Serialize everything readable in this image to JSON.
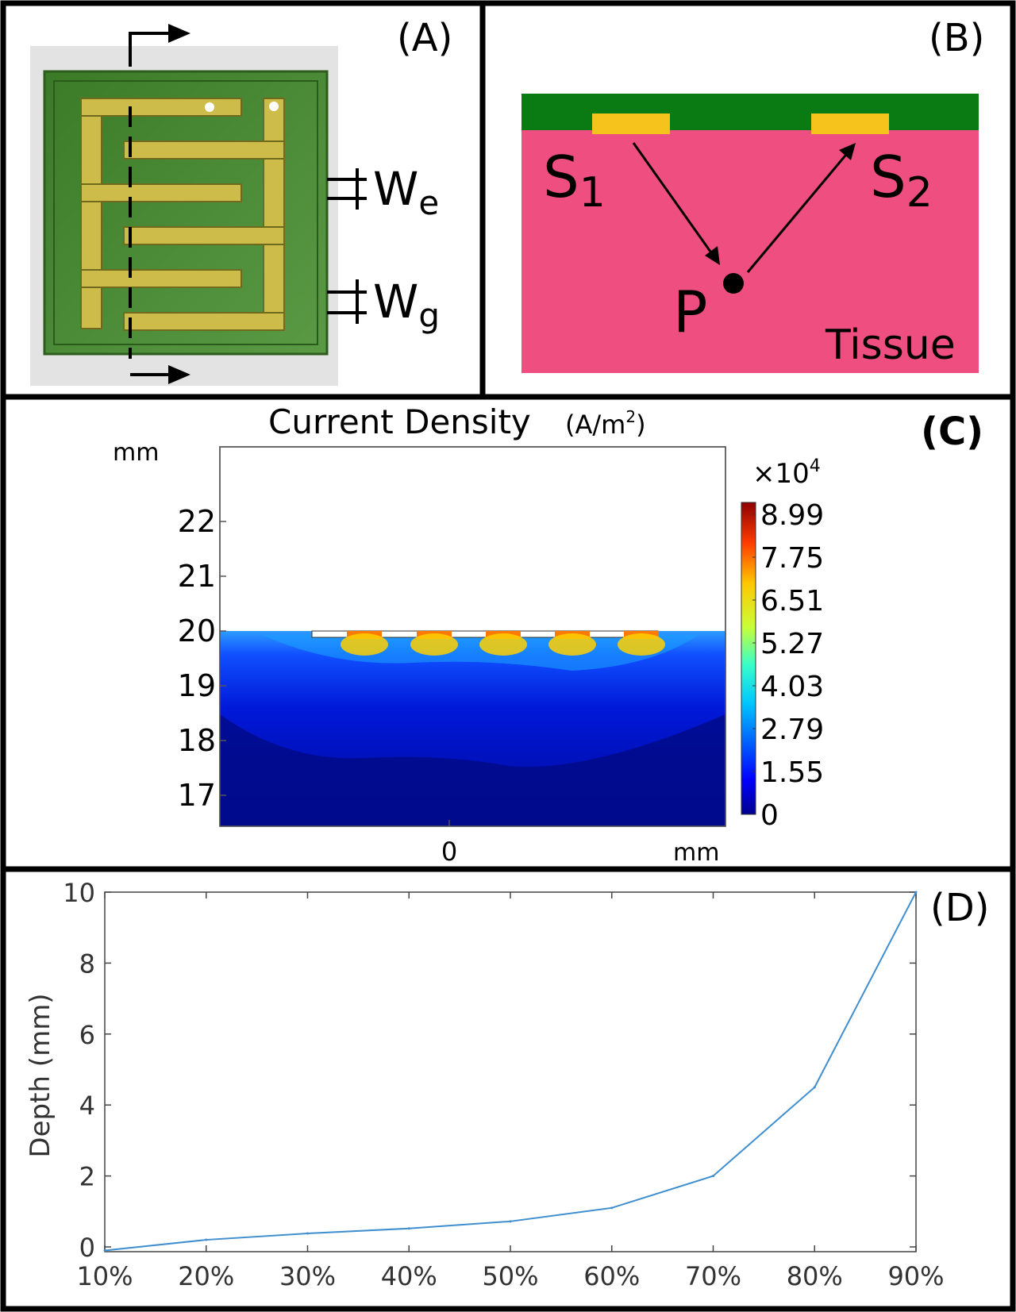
{
  "panels": {
    "a": {
      "label": "(A)",
      "we_label": "W",
      "we_sub": "e",
      "wg_label": "W",
      "wg_sub": "g"
    },
    "b": {
      "label": "(B)",
      "s1": "S",
      "s1_sub": "1",
      "s2": "S",
      "s2_sub": "2",
      "p": "P",
      "tissue": "Tissue"
    },
    "c": {
      "label": "(C)",
      "title": "Current Density",
      "units": "(A/m",
      "units_sup": "2",
      "units_close": ")",
      "y_unit": "mm",
      "x_unit": "mm",
      "x_tick": "0",
      "y_ticks": [
        "22",
        "21",
        "20",
        "19",
        "18",
        "17"
      ],
      "colorbar_multiplier": "×10",
      "colorbar_multiplier_sup": "4",
      "colorbar_ticks": [
        "8.99",
        "7.75",
        "6.51",
        "5.27",
        "4.03",
        "2.79",
        "1.55",
        "0"
      ]
    }
  },
  "chart_data": {
    "type": "line",
    "label": "(D)",
    "title": "",
    "xlabel": "",
    "ylabel": "Depth (mm)",
    "categories": [
      "10%",
      "20%",
      "30%",
      "40%",
      "50%",
      "60%",
      "70%",
      "80%",
      "90%"
    ],
    "series": [
      {
        "name": "Depth",
        "values": [
          -0.1,
          0.2,
          0.38,
          0.52,
          0.72,
          1.1,
          2.0,
          4.5,
          10.0
        ],
        "color": "#3f8fd0"
      }
    ],
    "y_ticks": [
      "0",
      "2",
      "4",
      "6",
      "8",
      "10"
    ],
    "ylim": [
      0,
      10
    ],
    "grid": false
  },
  "colors": {
    "pcb_green": "#3e7a2a",
    "gold": "#cdbb4a",
    "tissue_pink": "#ef4f80",
    "electrode_yellow": "#f6c21c",
    "board_green": "#0a7a12",
    "deep_blue": "#00008f"
  }
}
